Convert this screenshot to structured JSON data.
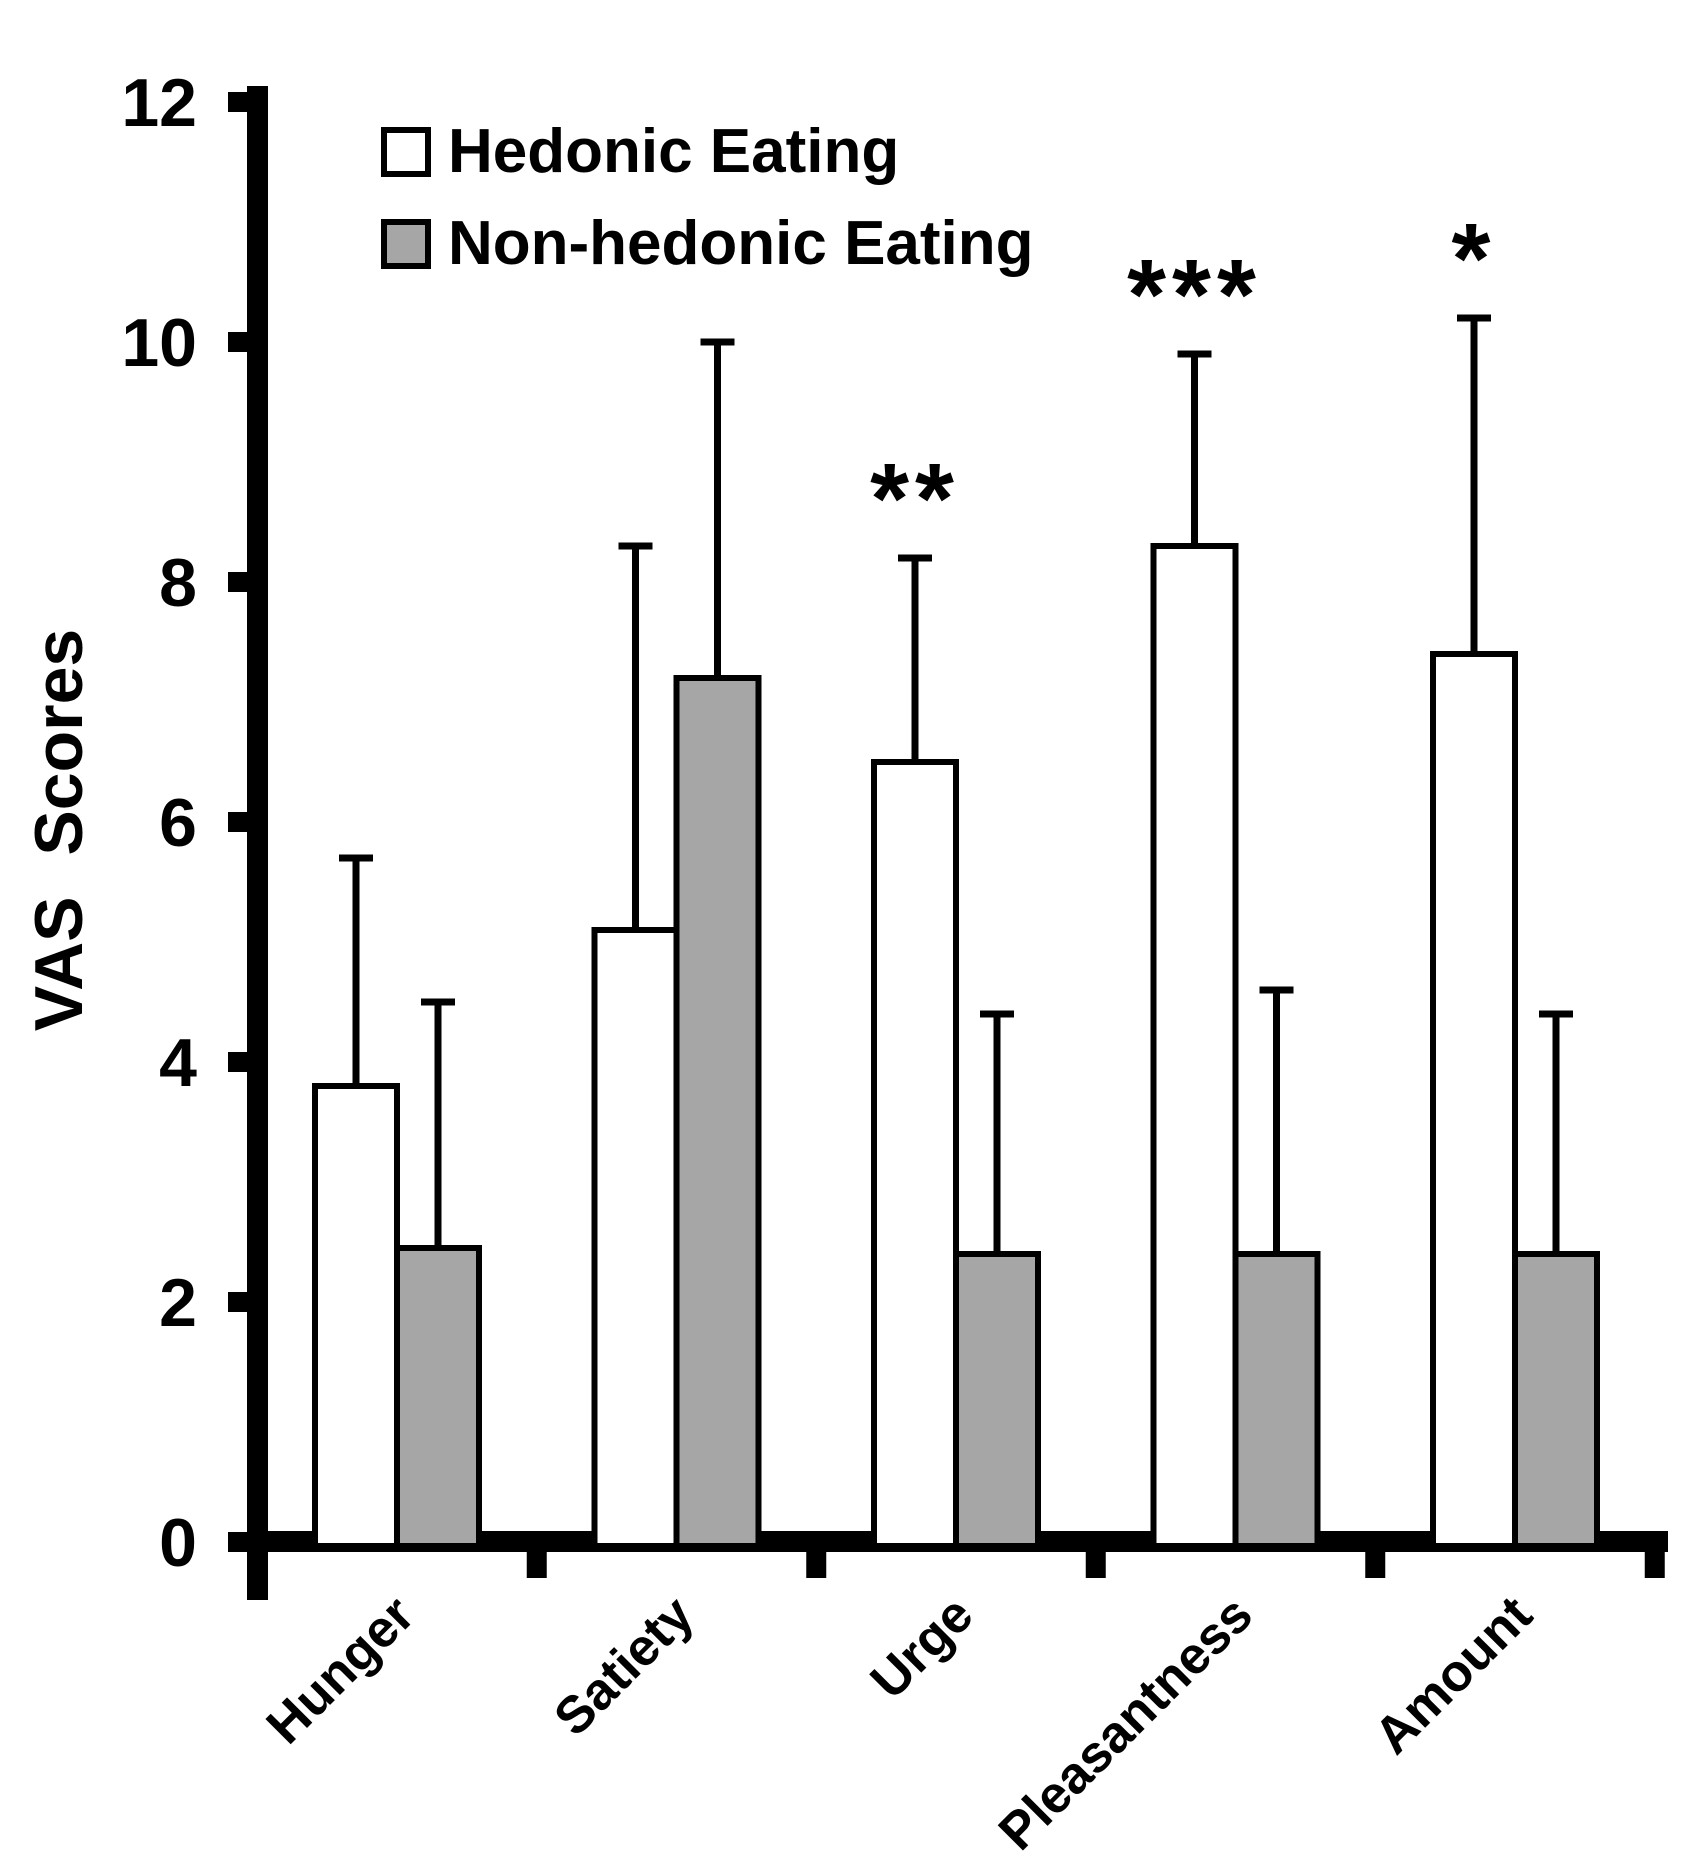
{
  "chart_data": {
    "type": "bar",
    "title": "",
    "ylabel": "VAS Scores",
    "xlabel": "",
    "categories": [
      "Hunger",
      "Satiety",
      "Urge",
      "Pleasantness",
      "Amount"
    ],
    "series": [
      {
        "name": "Hedonic Eating",
        "fill": "#ffffff",
        "values": [
          3.8,
          5.1,
          6.5,
          8.3,
          7.4
        ],
        "error_upper": [
          1.9,
          3.2,
          1.7,
          1.6,
          2.8
        ]
      },
      {
        "name": "Non-hedonic Eating",
        "fill": "#a6a6a6",
        "values": [
          2.45,
          7.2,
          2.4,
          2.4,
          2.4
        ],
        "error_upper": [
          2.05,
          2.8,
          2.0,
          2.2,
          2.0
        ]
      }
    ],
    "significance_markers": [
      {
        "category": "Urge",
        "label": "**"
      },
      {
        "category": "Pleasantness",
        "label": "***"
      },
      {
        "category": "Amount",
        "label": "*"
      }
    ],
    "ylim": [
      0,
      12
    ],
    "yticks": [
      0,
      2,
      4,
      6,
      8,
      10,
      12
    ],
    "grid": false,
    "legend_position": "upper-left-inside",
    "error_bar_style": "upper-only-with-caps",
    "colors": {
      "axis": "#000000",
      "text": "#000000",
      "bar_outline": "#000000",
      "hedonic_fill": "#ffffff",
      "non_hedonic_fill": "#a6a6a6",
      "background": "#ffffff"
    }
  }
}
